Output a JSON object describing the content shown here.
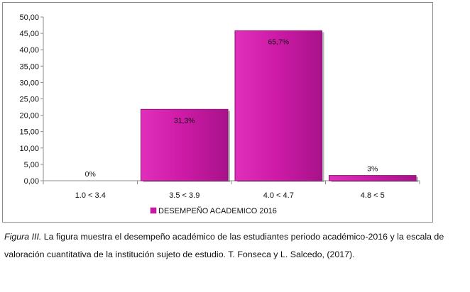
{
  "chart_data": {
    "type": "bar",
    "categories": [
      "1.0 < 3.4",
      "3.5 < 3.9",
      "4.0 < 4.7",
      "4.8 < 5"
    ],
    "series": [
      {
        "name": "DESEMPEÑO ACADEMICO 2016",
        "values": [
          0,
          21.8,
          45.8,
          1.6
        ],
        "labels": [
          "0%",
          "31,3%",
          "65,7%",
          "3%"
        ],
        "color": "#cc1aa6"
      }
    ],
    "yticks": [
      "0,00",
      "5,00",
      "10,00",
      "15,00",
      "20,00",
      "25,00",
      "30,00",
      "35,00",
      "40,00",
      "45,00",
      "50,00"
    ],
    "ylim": [
      0,
      50
    ],
    "grid": false,
    "legend": "bottom"
  },
  "caption": {
    "figure_label": "Figura III.",
    "text": " La figura muestra el desempeño académico de las estudiantes periodo académico-2016 y la escala de valoración cuantitativa de la institución sujeto de estudio. T. Fonseca y L. Salcedo, (2017)."
  }
}
